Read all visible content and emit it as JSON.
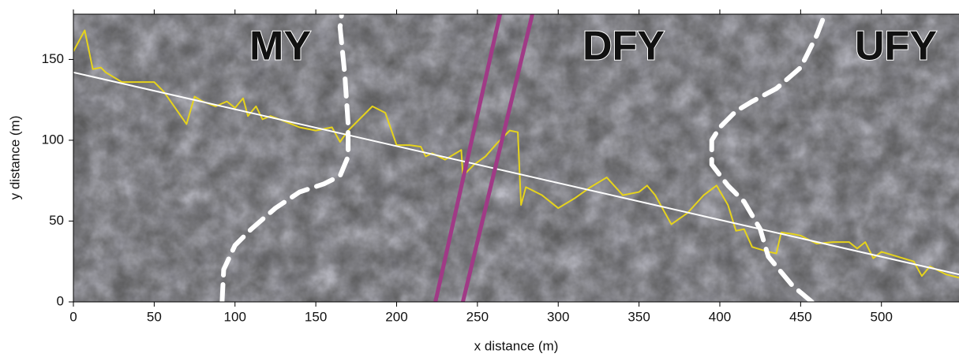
{
  "chart_data": {
    "type": "line",
    "x_label": "x distance (m)",
    "y_label": "y distance (m)",
    "xlim": [
      0,
      548
    ],
    "ylim": [
      0,
      178
    ],
    "xticks": [
      0,
      50,
      100,
      150,
      200,
      250,
      300,
      350,
      400,
      450,
      500
    ],
    "yticks": [
      0,
      50,
      100,
      150
    ],
    "annotations": [
      {
        "text": "MY",
        "color": "#2e8b4e"
      },
      {
        "text": "DFY",
        "color": "#d94040"
      },
      {
        "text": "UFY",
        "color": "#2a3580"
      }
    ],
    "series": [
      {
        "color": "#e6d31c",
        "width": 2,
        "dashed": false,
        "x": [
          0,
          7,
          12,
          17,
          20,
          30,
          50,
          56,
          70,
          75,
          80,
          88,
          95,
          100,
          105,
          108,
          113,
          117,
          122,
          130,
          140,
          150,
          160,
          165,
          170,
          185,
          193,
          200,
          208,
          215,
          218,
          222,
          230,
          240,
          241,
          248,
          255,
          262,
          270,
          275,
          277,
          280,
          290,
          300,
          310,
          320,
          330,
          340,
          350,
          355,
          360,
          370,
          380,
          390,
          398,
          405,
          410,
          415,
          420,
          430,
          435,
          438,
          445,
          450,
          460,
          470,
          480,
          485,
          490,
          495,
          500,
          510,
          520,
          525,
          530,
          540,
          548
        ],
        "values": [
          155,
          168,
          144,
          145,
          142,
          136,
          136,
          130,
          110,
          127,
          124,
          121,
          124,
          120,
          126,
          115,
          121,
          113,
          115,
          112,
          108,
          106,
          108,
          99,
          106,
          121,
          117,
          97,
          97,
          96,
          90,
          92,
          88,
          94,
          78,
          85,
          90,
          98,
          106,
          105,
          60,
          71,
          66,
          58,
          64,
          71,
          77,
          66,
          68,
          72,
          66,
          48,
          55,
          66,
          72,
          60,
          44,
          45,
          34,
          31,
          30,
          43,
          42,
          41,
          36,
          37,
          37,
          33,
          37,
          27,
          31,
          28,
          25,
          16,
          22,
          17,
          15
        ]
      },
      {
        "color": "#ffffff",
        "width": 2,
        "dashed": false,
        "x": [
          0,
          548
        ],
        "values": [
          142,
          17
        ]
      },
      {
        "color": "#a03a86",
        "width": 5,
        "dashed": false,
        "x": [
          224,
          264
        ],
        "values": [
          0,
          178
        ]
      },
      {
        "color": "#a03a86",
        "width": 5,
        "dashed": false,
        "x": [
          241,
          284
        ],
        "values": [
          0,
          178
        ]
      },
      {
        "color": "#ffffff",
        "width": 6,
        "dashed": true,
        "x": [
          92,
          93,
          100,
          110,
          125,
          140,
          155,
          165,
          170,
          170,
          168,
          165,
          166
        ],
        "values": [
          0,
          20,
          35,
          45,
          58,
          68,
          73,
          78,
          90,
          110,
          140,
          170,
          178
        ]
      },
      {
        "color": "#ffffff",
        "width": 6,
        "dashed": true,
        "x": [
          457,
          445,
          430,
          425,
          415,
          405,
          395,
          395,
          400,
          410,
          420,
          435,
          450,
          460,
          465
        ],
        "values": [
          0,
          10,
          28,
          45,
          62,
          72,
          85,
          100,
          108,
          118,
          124,
          132,
          145,
          165,
          178
        ]
      }
    ]
  }
}
